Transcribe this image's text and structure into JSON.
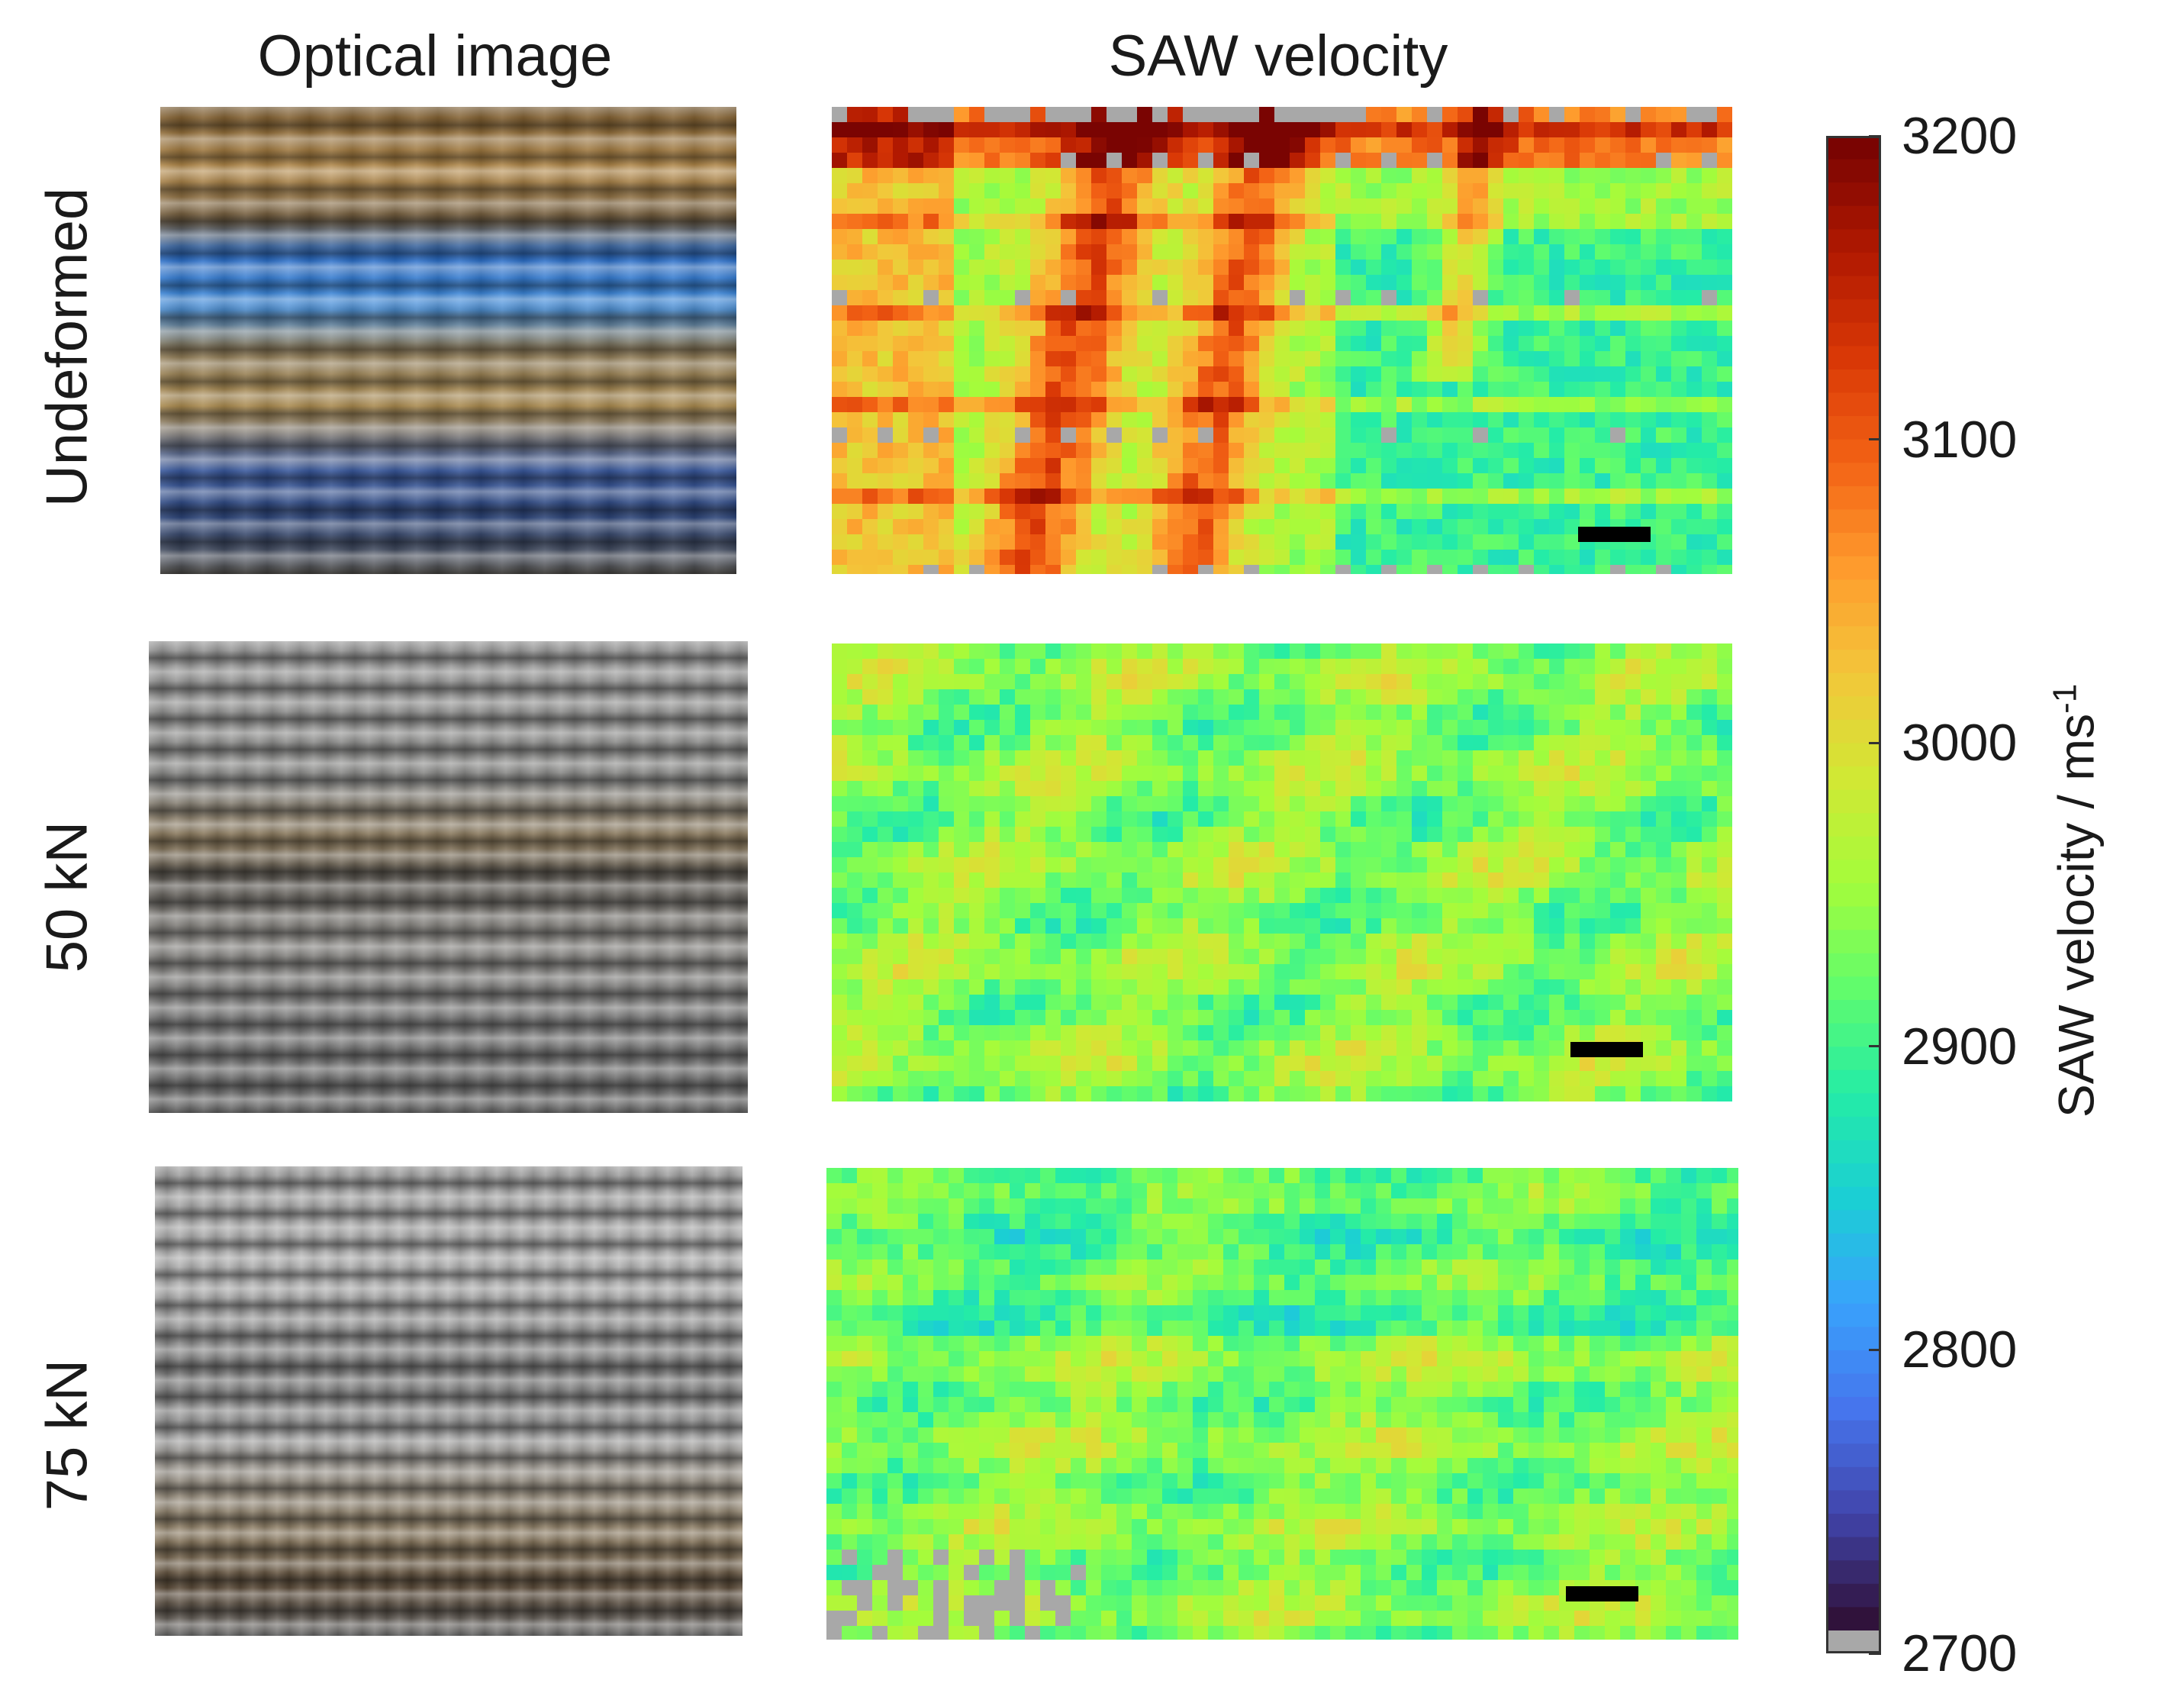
{
  "columns": {
    "optical_title": "Optical image",
    "saw_title": "SAW velocity"
  },
  "rows": [
    {
      "label": "Undeformed"
    },
    {
      "label": "50 kN"
    },
    {
      "label": "75 kN"
    }
  ],
  "colorbar": {
    "title": "SAW velocity / ms",
    "title_exponent": "-1",
    "min": 2700,
    "max": 3200,
    "ticks": [
      "3200",
      "3100",
      "3000",
      "2900",
      "2800",
      "2700"
    ],
    "no_data_color": "#a8a8a8",
    "colormap": [
      "#30123b",
      "#4145ab",
      "#4675ed",
      "#39a2fc",
      "#1bcfd4",
      "#24eca6",
      "#61fc6c",
      "#a4fc3b",
      "#d1e834",
      "#f3c63a",
      "#fe9b2d",
      "#f36315",
      "#d93806",
      "#b11901",
      "#7a0402"
    ]
  },
  "colors": {
    "scale_bar": "#000000",
    "frame": "#333333"
  }
}
